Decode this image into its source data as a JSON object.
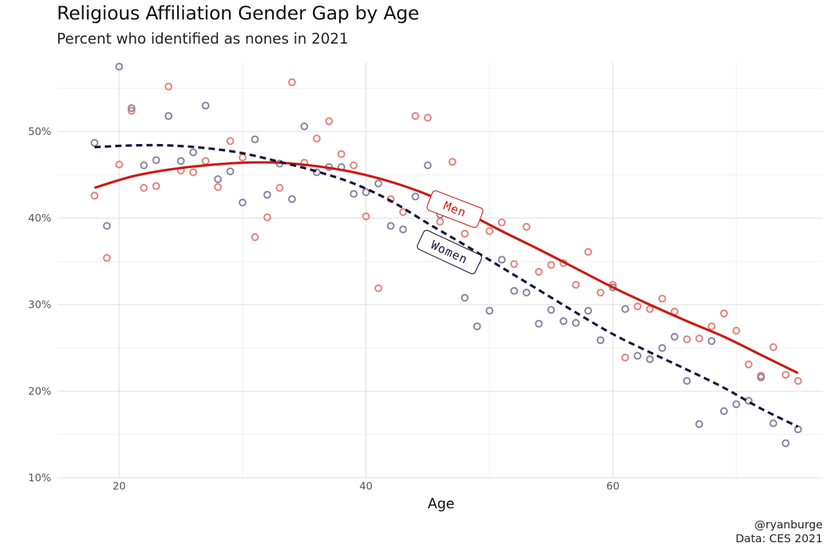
{
  "chart_data": {
    "type": "scatter",
    "title": "Religious Affiliation Gender Gap by Age",
    "subtitle": "Percent who identified as nones in 2021",
    "xlabel": "Age",
    "ylabel": "",
    "xlim": [
      15,
      77
    ],
    "ylim": [
      10,
      58
    ],
    "x_ticks": [
      20,
      40,
      60
    ],
    "y_ticks": [
      10,
      20,
      30,
      40,
      50
    ],
    "y_tick_labels": [
      "10%",
      "20%",
      "30%",
      "40%",
      "50%"
    ],
    "grid": true,
    "legend": "none",
    "series": [
      {
        "name": "Men",
        "color": "#cc1a14",
        "point_color": "#e8837e",
        "line_style": "solid",
        "x": [
          18,
          19,
          20,
          21,
          22,
          23,
          24,
          25,
          26,
          27,
          28,
          29,
          30,
          31,
          32,
          33,
          34,
          35,
          36,
          37,
          38,
          39,
          40,
          41,
          42,
          43,
          44,
          45,
          46,
          47,
          48,
          49,
          50,
          51,
          52,
          53,
          54,
          55,
          56,
          57,
          58,
          59,
          60,
          61,
          62,
          63,
          64,
          65,
          66,
          67,
          68,
          69,
          70,
          71,
          72,
          73,
          74,
          75
        ],
        "values": [
          42.6,
          35.4,
          46.2,
          52.4,
          43.5,
          43.7,
          55.2,
          45.5,
          45.3,
          46.6,
          43.6,
          48.9,
          47.0,
          37.8,
          40.1,
          43.5,
          55.7,
          46.4,
          49.2,
          51.2,
          47.4,
          46.1,
          40.2,
          31.9,
          42.2,
          40.7,
          51.8,
          51.6,
          39.6,
          46.5,
          38.2,
          35.0,
          38.5,
          39.5,
          34.7,
          39.0,
          33.8,
          34.6,
          34.8,
          32.3,
          36.1,
          31.4,
          32.3,
          23.9,
          29.8,
          29.5,
          30.7,
          29.2,
          26.0,
          26.1,
          27.5,
          29.0,
          27.0,
          23.1,
          21.8,
          25.1,
          21.9,
          21.2
        ],
        "fit": [
          [
            18,
            43.5
          ],
          [
            21,
            44.8
          ],
          [
            24,
            45.6
          ],
          [
            27,
            46.1
          ],
          [
            30,
            46.4
          ],
          [
            33,
            46.4
          ],
          [
            36,
            46.0
          ],
          [
            39,
            45.3
          ],
          [
            42,
            44.2
          ],
          [
            45,
            42.7
          ],
          [
            48,
            40.7
          ],
          [
            51,
            38.5
          ],
          [
            54,
            36.4
          ],
          [
            57,
            34.2
          ],
          [
            60,
            32.0
          ],
          [
            63,
            30.0
          ],
          [
            66,
            28.1
          ],
          [
            69,
            26.3
          ],
          [
            72,
            24.2
          ],
          [
            75,
            22.1
          ]
        ]
      },
      {
        "name": "Women",
        "color": "#14143c",
        "point_color": "#8a88a0",
        "line_style": "dashed",
        "x": [
          18,
          19,
          20,
          21,
          22,
          23,
          24,
          25,
          26,
          27,
          28,
          29,
          30,
          31,
          32,
          33,
          34,
          35,
          36,
          37,
          38,
          39,
          40,
          41,
          42,
          43,
          44,
          45,
          46,
          48,
          49,
          50,
          51,
          52,
          53,
          54,
          55,
          56,
          57,
          58,
          59,
          60,
          61,
          62,
          63,
          64,
          65,
          66,
          67,
          68,
          69,
          70,
          71,
          72,
          73,
          74,
          75
        ],
        "values": [
          48.7,
          39.1,
          57.5,
          52.7,
          46.1,
          46.7,
          51.8,
          46.6,
          47.6,
          53.0,
          44.5,
          45.4,
          41.8,
          49.1,
          42.7,
          46.3,
          42.2,
          50.6,
          45.3,
          45.9,
          45.9,
          42.8,
          43.0,
          44.0,
          39.1,
          38.7,
          42.5,
          46.1,
          40.4,
          30.8,
          27.5,
          29.3,
          35.2,
          31.6,
          31.4,
          27.8,
          29.4,
          28.1,
          27.9,
          29.3,
          25.9,
          32.0,
          29.5,
          24.1,
          23.7,
          25.0,
          26.3,
          21.2,
          16.2,
          25.8,
          17.7,
          18.5,
          18.9,
          21.6,
          16.3,
          14.0,
          15.6
        ],
        "fit": [
          [
            18,
            48.2
          ],
          [
            21,
            48.4
          ],
          [
            24,
            48.4
          ],
          [
            27,
            48.1
          ],
          [
            30,
            47.5
          ],
          [
            33,
            46.5
          ],
          [
            36,
            45.4
          ],
          [
            39,
            44.0
          ],
          [
            42,
            42.0
          ],
          [
            45,
            39.4
          ],
          [
            48,
            36.9
          ],
          [
            51,
            34.3
          ],
          [
            54,
            31.7
          ],
          [
            57,
            29.1
          ],
          [
            60,
            26.6
          ],
          [
            63,
            24.5
          ],
          [
            66,
            22.5
          ],
          [
            69,
            20.4
          ],
          [
            72,
            18.0
          ],
          [
            75,
            15.9
          ]
        ]
      }
    ]
  },
  "caption": {
    "line1": "@ryanburge",
    "line2": "Data: CES 2021"
  }
}
